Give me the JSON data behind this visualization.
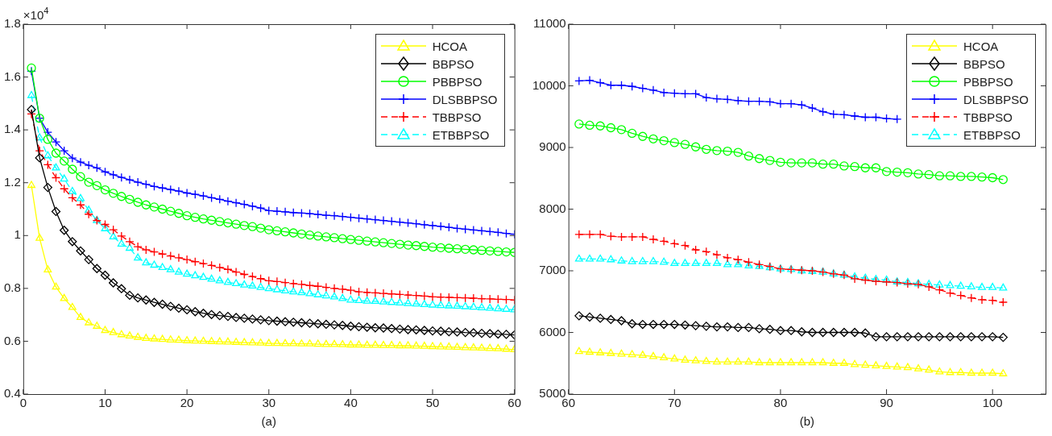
{
  "chart_data": [
    {
      "type": "line",
      "xlabel": "(a)",
      "annotations": [
        "×10$^{4}$"
      ],
      "xlim": [
        0,
        60
      ],
      "xticks": [
        0,
        10,
        20,
        30,
        40,
        50,
        60
      ],
      "ylim": [
        0.4,
        1.8
      ],
      "yticks": [
        0.4,
        0.6,
        0.8,
        1,
        1.2,
        1.4,
        1.6,
        1.8
      ],
      "grid": false,
      "legend": "top right",
      "x": [
        1,
        2,
        3,
        4,
        5,
        6,
        7,
        8,
        9,
        10,
        11,
        12,
        13,
        14,
        15,
        16,
        17,
        18,
        19,
        20,
        21,
        22,
        23,
        24,
        25,
        26,
        27,
        28,
        29,
        30,
        31,
        32,
        33,
        34,
        35,
        36,
        37,
        38,
        39,
        40,
        41,
        42,
        43,
        44,
        45,
        46,
        47,
        48,
        49,
        50,
        51,
        52,
        53,
        54,
        55,
        56,
        57,
        58,
        59,
        60
      ],
      "series": [
        {
          "name": "HCOA",
          "color": "#ffff00",
          "marker": "triangle",
          "line_style": "solid",
          "values": [
            1.19,
            0.99,
            0.87,
            0.805,
            0.762,
            0.728,
            0.69,
            0.67,
            0.657,
            0.641,
            0.633,
            0.625,
            0.62,
            0.615,
            0.611,
            0.609,
            0.607,
            0.605,
            0.604,
            0.602,
            0.601,
            0.6,
            0.599,
            0.598,
            0.597,
            0.596,
            0.595,
            0.594,
            0.593,
            0.592,
            0.592,
            0.591,
            0.591,
            0.59,
            0.59,
            0.589,
            0.588,
            0.588,
            0.587,
            0.586,
            0.586,
            0.585,
            0.585,
            0.584,
            0.584,
            0.583,
            0.583,
            0.582,
            0.581,
            0.58,
            0.579,
            0.578,
            0.577,
            0.576,
            0.575,
            0.574,
            0.573,
            0.572,
            0.57,
            0.568
          ]
        },
        {
          "name": "BBPSO",
          "color": "#000000",
          "marker": "diamond",
          "line_style": "solid",
          "values": [
            1.477,
            1.294,
            1.182,
            1.091,
            1.02,
            0.977,
            0.942,
            0.909,
            0.875,
            0.85,
            0.821,
            0.799,
            0.774,
            0.764,
            0.756,
            0.747,
            0.74,
            0.732,
            0.725,
            0.719,
            0.712,
            0.706,
            0.701,
            0.697,
            0.694,
            0.69,
            0.687,
            0.684,
            0.681,
            0.678,
            0.676,
            0.674,
            0.672,
            0.67,
            0.668,
            0.666,
            0.664,
            0.662,
            0.66,
            0.657,
            0.655,
            0.653,
            0.651,
            0.65,
            0.648,
            0.646,
            0.644,
            0.643,
            0.641,
            0.639,
            0.638,
            0.636,
            0.635,
            0.633,
            0.632,
            0.63,
            0.629,
            0.627,
            0.626,
            0.624
          ]
        },
        {
          "name": "PBBPSO",
          "color": "#00ff00",
          "marker": "circle",
          "line_style": "solid",
          "values": [
            1.634,
            1.444,
            1.364,
            1.312,
            1.282,
            1.251,
            1.223,
            1.202,
            1.189,
            1.173,
            1.16,
            1.148,
            1.137,
            1.126,
            1.116,
            1.108,
            1.1,
            1.092,
            1.084,
            1.075,
            1.069,
            1.063,
            1.058,
            1.053,
            1.048,
            1.043,
            1.038,
            1.034,
            1.028,
            1.022,
            1.018,
            1.014,
            1.01,
            1.006,
            1.002,
            0.998,
            0.995,
            0.992,
            0.988,
            0.985,
            0.982,
            0.979,
            0.976,
            0.973,
            0.97,
            0.967,
            0.964,
            0.962,
            0.959,
            0.956,
            0.954,
            0.952,
            0.95,
            0.948,
            0.946,
            0.944,
            0.942,
            0.94,
            0.938,
            0.936
          ]
        },
        {
          "name": "DLSBBPSO",
          "color": "#0000ff",
          "marker": "cross",
          "line_style": "solid",
          "values": [
            1.622,
            1.444,
            1.391,
            1.354,
            1.321,
            1.293,
            1.278,
            1.266,
            1.256,
            1.241,
            1.23,
            1.22,
            1.211,
            1.202,
            1.194,
            1.186,
            1.18,
            1.174,
            1.168,
            1.161,
            1.156,
            1.15,
            1.143,
            1.137,
            1.13,
            1.124,
            1.118,
            1.111,
            1.104,
            1.094,
            1.092,
            1.09,
            1.087,
            1.085,
            1.083,
            1.08,
            1.077,
            1.075,
            1.072,
            1.069,
            1.066,
            1.063,
            1.06,
            1.057,
            1.054,
            1.051,
            1.048,
            1.045,
            1.041,
            1.038,
            1.035,
            1.031,
            1.027,
            1.024,
            1.021,
            1.018,
            1.015,
            1.012,
            1.008,
            1.005
          ]
        },
        {
          "name": "TBBPSO",
          "color": "#ff0000",
          "marker": "cross",
          "line_style": "dashed",
          "values": [
            1.46,
            1.321,
            1.268,
            1.219,
            1.177,
            1.143,
            1.116,
            1.081,
            1.057,
            1.042,
            1.022,
            0.998,
            0.977,
            0.958,
            0.946,
            0.938,
            0.93,
            0.923,
            0.916,
            0.909,
            0.901,
            0.894,
            0.887,
            0.879,
            0.872,
            0.862,
            0.853,
            0.845,
            0.837,
            0.829,
            0.826,
            0.822,
            0.818,
            0.815,
            0.811,
            0.808,
            0.804,
            0.8,
            0.797,
            0.793,
            0.787,
            0.785,
            0.783,
            0.781,
            0.779,
            0.777,
            0.775,
            0.773,
            0.771,
            0.768,
            0.767,
            0.766,
            0.765,
            0.764,
            0.763,
            0.761,
            0.76,
            0.759,
            0.758,
            0.756
          ]
        },
        {
          "name": "ETBBPSO",
          "color": "#00ffff",
          "marker": "triangle",
          "line_style": "dashed",
          "values": [
            1.53,
            1.37,
            1.302,
            1.256,
            1.214,
            1.167,
            1.14,
            1.096,
            1.057,
            1.026,
            0.995,
            0.968,
            0.952,
            0.915,
            0.897,
            0.888,
            0.879,
            0.871,
            0.862,
            0.854,
            0.848,
            0.842,
            0.835,
            0.829,
            0.823,
            0.818,
            0.813,
            0.809,
            0.804,
            0.799,
            0.795,
            0.791,
            0.787,
            0.784,
            0.78,
            0.776,
            0.772,
            0.768,
            0.762,
            0.756,
            0.754,
            0.752,
            0.751,
            0.749,
            0.747,
            0.745,
            0.743,
            0.741,
            0.739,
            0.737,
            0.735,
            0.734,
            0.733,
            0.731,
            0.729,
            0.727,
            0.725,
            0.723,
            0.721,
            0.719
          ]
        }
      ]
    },
    {
      "type": "line",
      "xlabel": "(b)",
      "xlim": [
        60,
        105
      ],
      "xticks": [
        60,
        70,
        80,
        90,
        100
      ],
      "ylim": [
        5000,
        11000
      ],
      "yticks": [
        5000,
        6000,
        7000,
        8000,
        9000,
        10000,
        11000
      ],
      "grid": false,
      "legend": "top right",
      "x": [
        61,
        62,
        63,
        64,
        65,
        66,
        67,
        68,
        69,
        70,
        71,
        72,
        73,
        74,
        75,
        76,
        77,
        78,
        79,
        80,
        81,
        82,
        83,
        84,
        85,
        86,
        87,
        88,
        89,
        90,
        91,
        92,
        93,
        94,
        95,
        96,
        97,
        98,
        99,
        100,
        101
      ],
      "series": [
        {
          "name": "HCOA",
          "color": "#ffff00",
          "marker": "triangle",
          "line_style": "solid",
          "values": [
            5690,
            5680,
            5670,
            5660,
            5650,
            5640,
            5630,
            5610,
            5590,
            5570,
            5550,
            5540,
            5530,
            5520,
            5520,
            5520,
            5520,
            5510,
            5510,
            5510,
            5510,
            5510,
            5510,
            5510,
            5500,
            5500,
            5480,
            5470,
            5460,
            5450,
            5440,
            5430,
            5410,
            5390,
            5360,
            5350,
            5350,
            5340,
            5340,
            5340,
            5330
          ]
        },
        {
          "name": "BBPSO",
          "color": "#000000",
          "marker": "diamond",
          "line_style": "solid",
          "values": [
            6270,
            6250,
            6230,
            6210,
            6190,
            6140,
            6130,
            6130,
            6130,
            6130,
            6120,
            6110,
            6100,
            6090,
            6090,
            6080,
            6080,
            6060,
            6050,
            6030,
            6030,
            6010,
            6000,
            6000,
            6000,
            6000,
            6000,
            5990,
            5930,
            5930,
            5930,
            5930,
            5930,
            5930,
            5930,
            5930,
            5930,
            5930,
            5930,
            5930,
            5920
          ]
        },
        {
          "name": "PBBPSO",
          "color": "#00ff00",
          "marker": "circle",
          "line_style": "solid",
          "values": [
            9380,
            9360,
            9350,
            9320,
            9290,
            9230,
            9180,
            9140,
            9110,
            9080,
            9050,
            9010,
            8970,
            8950,
            8940,
            8920,
            8860,
            8820,
            8790,
            8760,
            8750,
            8750,
            8750,
            8730,
            8730,
            8700,
            8690,
            8670,
            8670,
            8610,
            8600,
            8590,
            8570,
            8560,
            8540,
            8540,
            8530,
            8530,
            8520,
            8510,
            8480
          ]
        },
        {
          "name": "DLSBBPSO",
          "color": "#0000ff",
          "marker": "cross",
          "line_style": "solid",
          "values": [
            10080,
            10090,
            10050,
            10010,
            10010,
            9990,
            9960,
            9930,
            9890,
            9880,
            9870,
            9870,
            9810,
            9790,
            9780,
            9760,
            9750,
            9750,
            9740,
            9710,
            9710,
            9690,
            9640,
            9580,
            9540,
            9530,
            9510,
            9490,
            9490,
            9470,
            9460,
            null,
            null,
            null,
            null,
            null,
            null,
            null,
            null,
            null,
            null
          ]
        },
        {
          "name": "TBBPSO",
          "color": "#ff0000",
          "marker": "cross",
          "line_style": "dashed",
          "values": [
            7590,
            7590,
            7590,
            7560,
            7550,
            7550,
            7550,
            7510,
            7480,
            7440,
            7410,
            7340,
            7310,
            7260,
            7210,
            7180,
            7140,
            7100,
            7070,
            7030,
            7020,
            7010,
            7000,
            6980,
            6950,
            6930,
            6870,
            6850,
            6830,
            6820,
            6810,
            6790,
            6780,
            6740,
            6690,
            6640,
            6600,
            6560,
            6530,
            6520,
            6490
          ]
        },
        {
          "name": "ETBBPSO",
          "color": "#00ffff",
          "marker": "triangle",
          "line_style": "dashed",
          "values": [
            7190,
            7190,
            7190,
            7180,
            7160,
            7150,
            7150,
            7150,
            7140,
            7120,
            7120,
            7120,
            7120,
            7120,
            7100,
            7100,
            7080,
            7070,
            7050,
            7030,
            7020,
            7000,
            6990,
            6980,
            6950,
            6930,
            6900,
            6880,
            6860,
            6850,
            6820,
            6810,
            6790,
            6780,
            6770,
            6760,
            6750,
            6740,
            6730,
            6730,
            6720
          ]
        }
      ]
    }
  ]
}
